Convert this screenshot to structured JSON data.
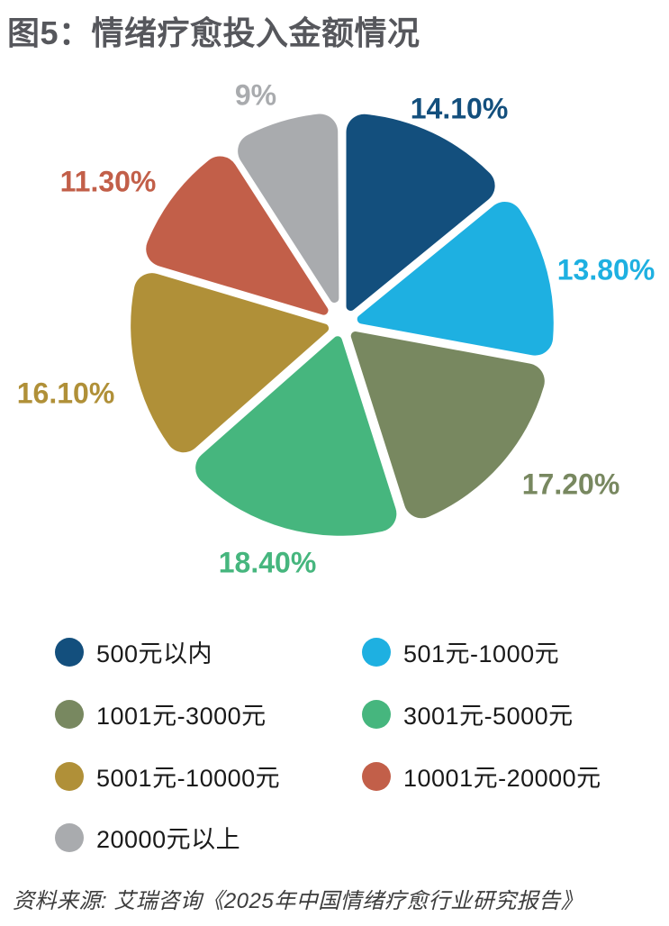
{
  "page": {
    "title": "图5：情绪疗愈投入金额情况",
    "source": "资料来源: 艾瑞咨询《2025年中国情绪疗愈行业研究报告》"
  },
  "colors": {
    "title_text": "#56575C",
    "legend_text": "#1A1A1A",
    "source_text": "#3C3C3C",
    "background": "#FFFFFF"
  },
  "chart_data": {
    "type": "pie",
    "title": "情绪疗愈投入金额情况",
    "style": "exploded, rounded-corner wedges, white gaps",
    "start_angle_deg": 0,
    "direction": "clockwise",
    "legend_position": "bottom, two columns",
    "slices": [
      {
        "label": "500元以内",
        "value": 14.1,
        "display": "14.10%",
        "color": "#134F7D"
      },
      {
        "label": "501元-1000元",
        "value": 13.8,
        "display": "13.80%",
        "color": "#1EB0E1"
      },
      {
        "label": "1001元-3000元",
        "value": 17.2,
        "display": "17.20%",
        "color": "#788860"
      },
      {
        "label": "3001元-5000元",
        "value": 18.4,
        "display": "18.40%",
        "color": "#46B67E"
      },
      {
        "label": "5001元-10000元",
        "value": 16.1,
        "display": "16.10%",
        "color": "#B09038"
      },
      {
        "label": "10001元-20000元",
        "value": 11.3,
        "display": "11.30%",
        "color": "#C25F49"
      },
      {
        "label": "20000元以上",
        "value": 9.0,
        "display": "9%",
        "color": "#A9ABAE"
      }
    ]
  }
}
